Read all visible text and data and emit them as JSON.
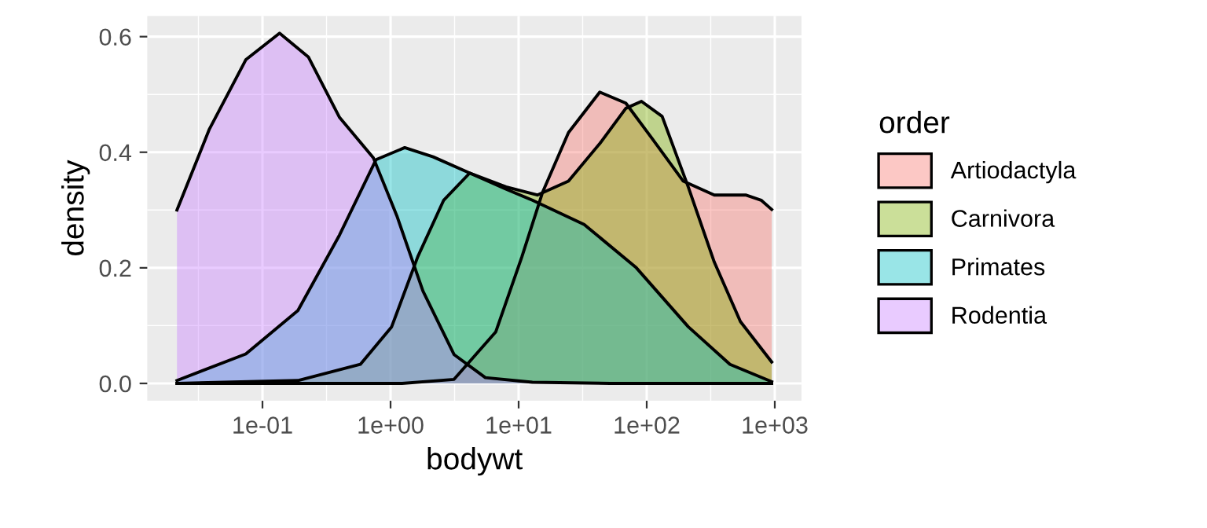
{
  "chart_data": {
    "type": "area",
    "xlabel": "bodywt",
    "ylabel": "density",
    "legend_title": "order",
    "log": "x",
    "grid": true,
    "legend": "right",
    "xlim": [
      0.0126,
      1615
    ],
    "xticks": [
      {
        "value": 0.1,
        "label": "1e-01"
      },
      {
        "value": 1,
        "label": "1e+00"
      },
      {
        "value": 10,
        "label": "1e+01"
      },
      {
        "value": 100,
        "label": "1e+02"
      },
      {
        "value": 1000,
        "label": "1e+03"
      }
    ],
    "ylim": [
      -0.03,
      0.636
    ],
    "yticks": [
      {
        "value": 0,
        "label": "0.0"
      },
      {
        "value": 0.2,
        "label": "0.2"
      },
      {
        "value": 0.4,
        "label": "0.4"
      },
      {
        "value": 0.6,
        "label": "0.6"
      }
    ],
    "series": [
      {
        "name": "Artiodactyla",
        "color": "#f8766d",
        "x": [
          0.0215,
          1.23,
          3.13,
          6.62,
          10.6,
          15.4,
          24.5,
          43,
          68.7,
          110,
          193,
          337,
          592,
          783,
          946
        ],
        "values": [
          0,
          0,
          0.007,
          0.089,
          0.219,
          0.331,
          0.434,
          0.504,
          0.485,
          0.424,
          0.35,
          0.326,
          0.326,
          0.317,
          0.301
        ]
      },
      {
        "name": "Carnivora",
        "color": "#7cae00",
        "x": [
          0.0215,
          0.189,
          0.581,
          1.02,
          1.63,
          2.6,
          4.15,
          7.98,
          14,
          24.5,
          43,
          68.7,
          91,
          132,
          211,
          337,
          539,
          946
        ],
        "values": [
          0,
          0.005,
          0.033,
          0.098,
          0.219,
          0.317,
          0.364,
          0.34,
          0.326,
          0.35,
          0.415,
          0.476,
          0.488,
          0.462,
          0.34,
          0.21,
          0.107,
          0.037
        ]
      },
      {
        "name": "Primates",
        "color": "#00bfc4",
        "x": [
          0.0215,
          0.0741,
          0.189,
          0.4,
          0.769,
          1.29,
          2.15,
          4.15,
          7.98,
          12.8,
          32.5,
          83,
          211,
          447,
          946
        ],
        "values": [
          0.005,
          0.051,
          0.126,
          0.257,
          0.387,
          0.408,
          0.392,
          0.364,
          0.336,
          0.317,
          0.275,
          0.2,
          0.098,
          0.033,
          0.003
        ]
      },
      {
        "name": "Rodentia",
        "color": "#c77cff",
        "x": [
          0.0215,
          0.0385,
          0.0741,
          0.136,
          0.228,
          0.4,
          0.735,
          1.12,
          1.79,
          3.13,
          5.5,
          12.8,
          51.9,
          946
        ],
        "values": [
          0.3,
          0.44,
          0.56,
          0.606,
          0.565,
          0.46,
          0.39,
          0.29,
          0.16,
          0.05,
          0.01,
          0.002,
          0,
          0
        ]
      }
    ]
  }
}
